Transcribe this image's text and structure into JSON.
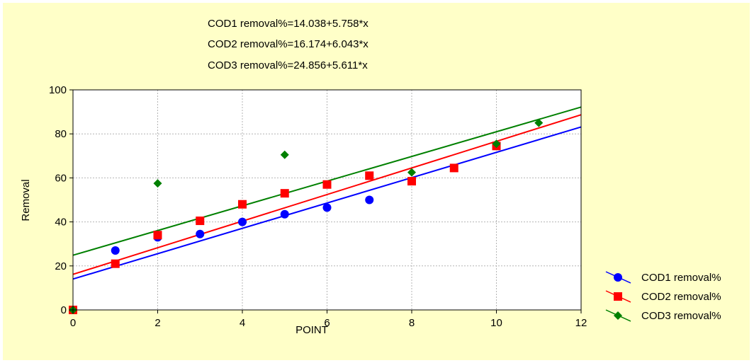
{
  "chart_data": {
    "type": "scatter",
    "title": "",
    "equations": [
      "COD1 removal%=14.038+5.758*x",
      "COD2 removal%=16.174+6.043*x",
      "COD3 removal%=24.856+5.611*x"
    ],
    "xlabel": "POINT",
    "ylabel": "Removal",
    "xlim": [
      0,
      12
    ],
    "ylim": [
      0,
      100
    ],
    "xticks": [
      0,
      2,
      4,
      6,
      8,
      10,
      12
    ],
    "yticks": [
      0,
      20,
      40,
      60,
      80,
      100
    ],
    "grid": true,
    "legend_position": "bottom-right",
    "series": [
      {
        "name": "COD1 removal%",
        "color": "#0000ff",
        "marker": "circle",
        "intercept": 14.038,
        "slope": 5.758,
        "points": [
          [
            1,
            27
          ],
          [
            2,
            33
          ],
          [
            3,
            34.5
          ],
          [
            4,
            40
          ],
          [
            5,
            43.5
          ],
          [
            6,
            46.5
          ],
          [
            7,
            50
          ]
        ]
      },
      {
        "name": "COD2 removal%",
        "color": "#ff0000",
        "marker": "square",
        "intercept": 16.174,
        "slope": 6.043,
        "points": [
          [
            0,
            0
          ],
          [
            1,
            21
          ],
          [
            2,
            34
          ],
          [
            3,
            40.5
          ],
          [
            4,
            48
          ],
          [
            5,
            53
          ],
          [
            6,
            57
          ],
          [
            7,
            61
          ],
          [
            8,
            58.5
          ],
          [
            9,
            64.5
          ],
          [
            10,
            74.5
          ]
        ]
      },
      {
        "name": "COD3 removal%",
        "color": "#008000",
        "marker": "diamond",
        "intercept": 24.856,
        "slope": 5.611,
        "points": [
          [
            0,
            0
          ],
          [
            2,
            57.5
          ],
          [
            5,
            70.5
          ],
          [
            8,
            62.5
          ],
          [
            10,
            75.5
          ],
          [
            11,
            85
          ]
        ]
      }
    ]
  }
}
